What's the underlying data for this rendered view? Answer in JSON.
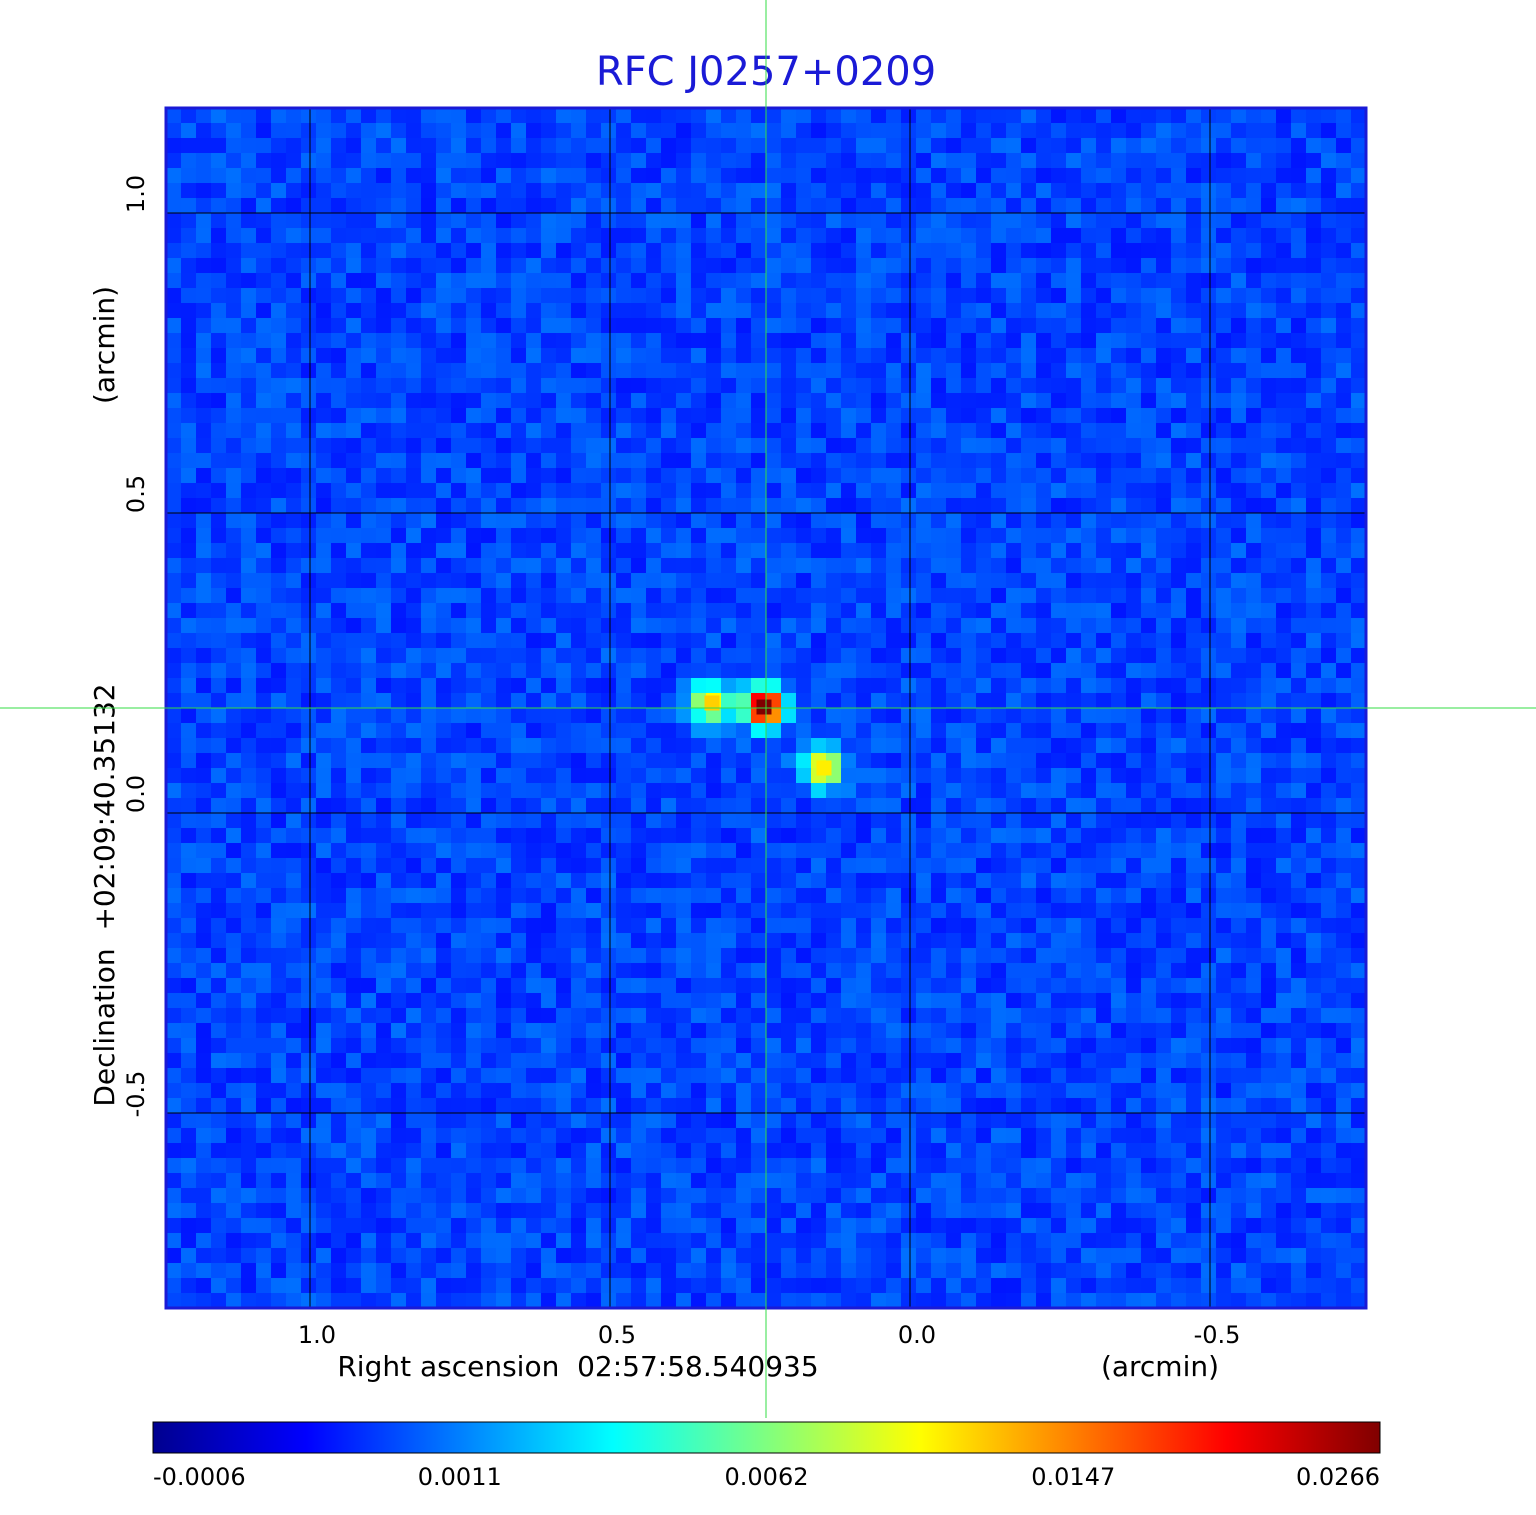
{
  "chart_data": {
    "type": "image",
    "title": "RFC J0257+0209",
    "x_label": "Right ascension  02:57:58.540935",
    "x_unit": "(arcmin)",
    "y_label": "Declination  +02:09:40.35132",
    "y_unit": "(arcmin)",
    "xlim": [
      1.24,
      -0.76
    ],
    "ylim": [
      -0.825,
      1.175
    ],
    "xticks": [
      {
        "value": 1,
        "label": "1.0"
      },
      0.5,
      {
        "value": 0,
        "label": "0.0"
      },
      -0.5
    ],
    "yticks": [
      {
        "value": 1,
        "label": "1.0"
      },
      0.5,
      {
        "value": 0,
        "label": "0.0"
      },
      -0.5
    ],
    "grid": true,
    "colorbar_ticks": [
      -0.0006,
      0.0011,
      0.0062,
      0.0147,
      0.0266
    ],
    "colormap": "jet",
    "sources": [
      {
        "x": 0.33,
        "y": 0.183,
        "peak": 0.012
      },
      {
        "x": 0.243,
        "y": 0.177,
        "peak": 0.0266
      },
      {
        "x": 0.143,
        "y": 0.075,
        "peak": 0.011
      }
    ]
  }
}
